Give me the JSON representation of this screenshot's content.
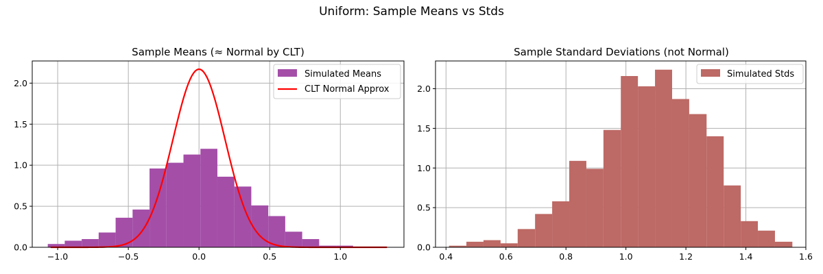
{
  "figure": {
    "suptitle": "Uniform: Sample Means vs Stds"
  },
  "chart_data": [
    {
      "type": "bar",
      "title": "Sample Means (≈ Normal by CLT)",
      "xlabel": "",
      "ylabel": "",
      "xlim": [
        -1.18,
        1.45
      ],
      "ylim": [
        0,
        2.27
      ],
      "xticks": [
        -1.0,
        -0.5,
        0.0,
        0.5,
        1.0
      ],
      "xtick_labels": [
        "−1.0",
        "−0.5",
        "0.0",
        "0.5",
        "1.0"
      ],
      "yticks": [
        0.0,
        0.5,
        1.0,
        1.5,
        2.0
      ],
      "ytick_labels": [
        "0.0",
        "0.5",
        "1.0",
        "1.5",
        "2.0"
      ],
      "grid": true,
      "legend_position": "top-right",
      "histogram": {
        "name": "Simulated Means",
        "color": "#a44ea8",
        "bin_edges": [
          -1.07,
          -0.95,
          -0.83,
          -0.71,
          -0.59,
          -0.47,
          -0.35,
          -0.23,
          -0.11,
          0.01,
          0.13,
          0.25,
          0.37,
          0.49,
          0.61,
          0.73,
          0.85,
          0.97,
          1.09
        ],
        "values": [
          0.04,
          0.08,
          0.1,
          0.18,
          0.36,
          0.46,
          0.96,
          1.03,
          1.13,
          1.2,
          0.86,
          0.74,
          0.51,
          0.38,
          0.19,
          0.1,
          0.02,
          0.02
        ]
      },
      "curve": {
        "name": "CLT Normal Approx",
        "color": "#ff0000",
        "mean": 0.0,
        "peak": 2.17,
        "sd": 0.184,
        "x_range": [
          -1.05,
          1.33
        ]
      }
    },
    {
      "type": "bar",
      "title": "Sample Standard Deviations (not Normal)",
      "xlabel": "",
      "ylabel": "",
      "xlim": [
        0.365,
        1.6
      ],
      "ylim": [
        0,
        2.35
      ],
      "xticks": [
        0.4,
        0.6,
        0.8,
        1.0,
        1.2,
        1.4,
        1.6
      ],
      "xtick_labels": [
        "0.4",
        "0.6",
        "0.8",
        "1.0",
        "1.2",
        "1.4",
        "1.6"
      ],
      "yticks": [
        0.0,
        0.5,
        1.0,
        1.5,
        2.0
      ],
      "ytick_labels": [
        "0.0",
        "0.5",
        "1.0",
        "1.5",
        "2.0"
      ],
      "grid": true,
      "legend_position": "top-right",
      "histogram": {
        "name": "Simulated Stds",
        "color": "#bd6965",
        "bin_edges": [
          0.41,
          0.468,
          0.525,
          0.582,
          0.639,
          0.697,
          0.754,
          0.811,
          0.868,
          0.925,
          0.983,
          1.04,
          1.097,
          1.154,
          1.211,
          1.269,
          1.326,
          1.383,
          1.44,
          1.497,
          1.555
        ],
        "values": [
          0.02,
          0.07,
          0.09,
          0.05,
          0.23,
          0.42,
          0.58,
          1.09,
          0.99,
          1.48,
          2.16,
          2.03,
          2.24,
          1.87,
          1.68,
          1.4,
          0.78,
          0.33,
          0.21,
          0.07
        ]
      }
    }
  ]
}
